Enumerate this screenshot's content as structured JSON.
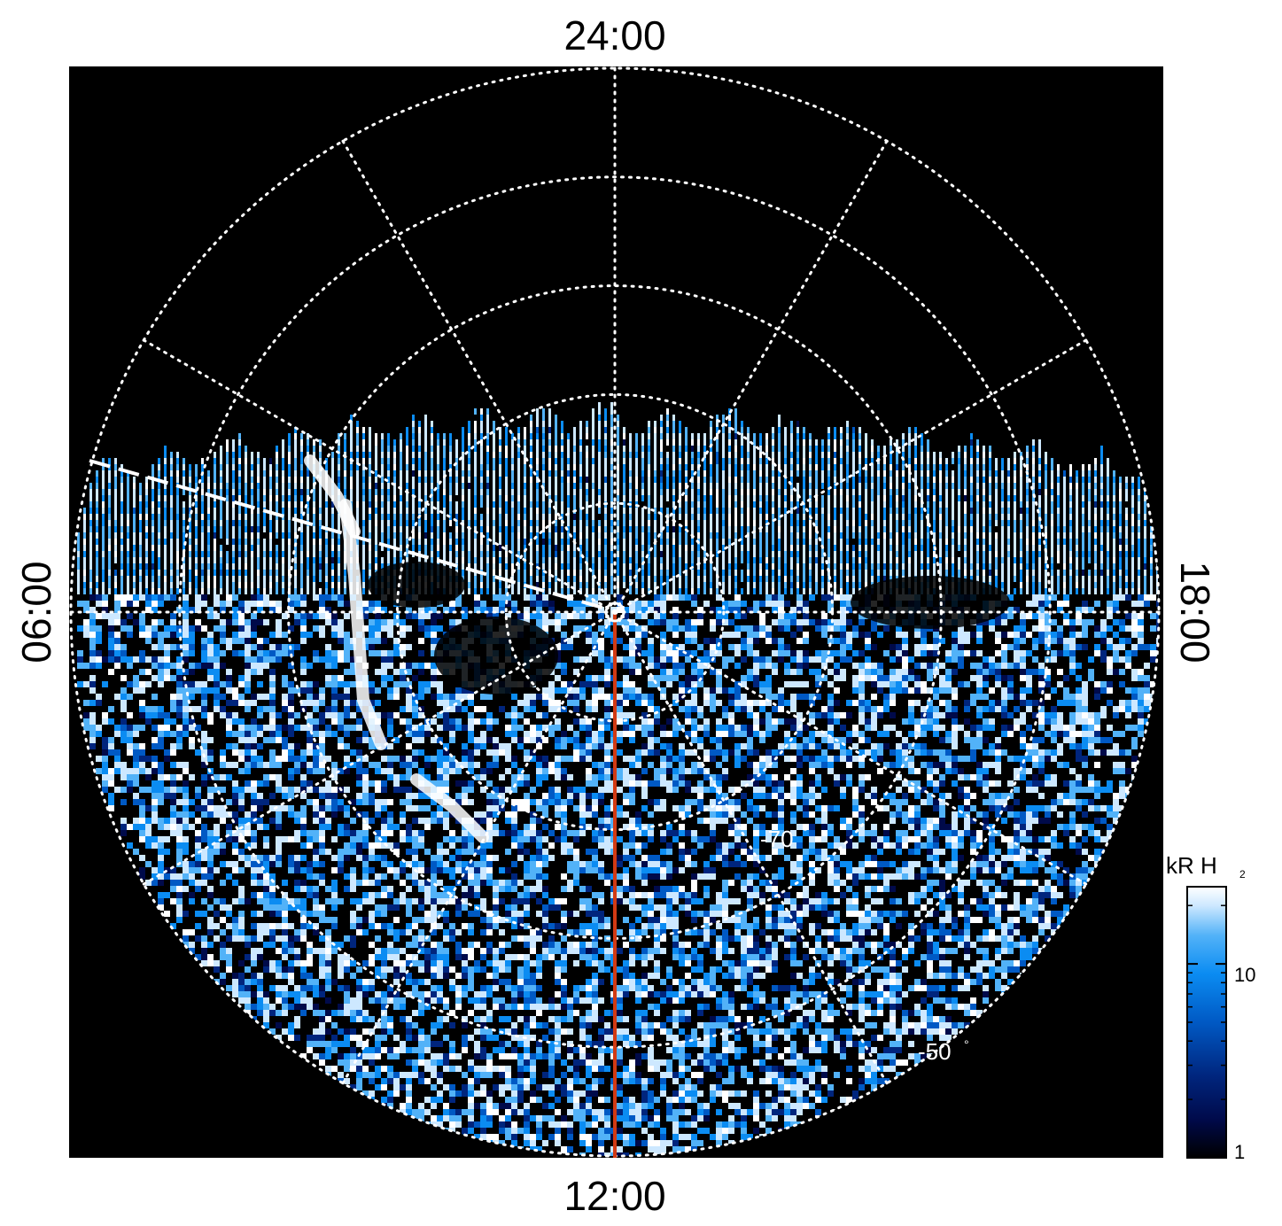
{
  "chart_data": {
    "type": "heatmap",
    "projection": "polar",
    "title": "",
    "local_time_labels": {
      "top": "24:00",
      "left": "06:00",
      "right": "18:00",
      "bottom": "12:00"
    },
    "latitude_labels": [
      {
        "text": "-70",
        "degree_symbol": "°"
      },
      {
        "text": "-50",
        "degree_symbol": "°"
      }
    ],
    "latitude_grid_deg": [
      -80,
      -70,
      -60,
      -50,
      -40
    ],
    "local_time_grid_hours": [
      0,
      2,
      4,
      6,
      8,
      10,
      12,
      14,
      16,
      18,
      20,
      22
    ],
    "grid": true,
    "grid_style": "dotted",
    "background": "#000000",
    "colorbar": {
      "label": "kR H",
      "label_subscript": "2",
      "scale": "log",
      "range": [
        1,
        25
      ],
      "tick_labels": [
        "10",
        "1"
      ],
      "tick_values": [
        10,
        1
      ],
      "colors": [
        "#000000",
        "#000a4a",
        "#00257d",
        "#0059c4",
        "#0b8cf2",
        "#52b2f8",
        "#cde8ff",
        "#ffffff"
      ],
      "position": "right"
    },
    "marked_meridian": {
      "local_time": "12:00",
      "color": "#d23a13"
    },
    "dashed_meridian": {
      "local_time_approx": "07:00",
      "color": "#ffffff"
    },
    "auroral_oval": {
      "observed_lt_range_description": "night side from 06:00 through 24:00 to 18:00",
      "peak_intensity_kR": 25,
      "typical_intensity_kR": 10
    }
  },
  "colors": {
    "grid": "#ffffff",
    "meridian": "#d23a13",
    "panel_background": "#000000"
  }
}
